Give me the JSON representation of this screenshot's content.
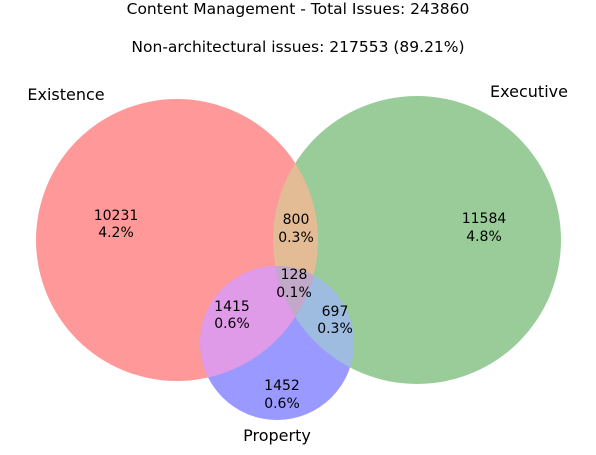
{
  "title": "Content Management - Total Issues: 243860",
  "subtitle": "Non-architectural issues: 217553 (89.21%)",
  "sets": {
    "existence": {
      "label": "Existence",
      "color": "#ff9999"
    },
    "executive": {
      "label": "Executive",
      "color": "#99cc99"
    },
    "property": {
      "label": "Property",
      "color": "#9999ff"
    }
  },
  "regions": {
    "existence_only": {
      "count": "10231",
      "percent": "4.2%",
      "color": "#ff9999"
    },
    "executive_only": {
      "count": "11584",
      "percent": "4.8%",
      "color": "#99cc99"
    },
    "property_only": {
      "count": "1452",
      "percent": "0.6%",
      "color": "#9999ff"
    },
    "existence_executive": {
      "count": "800",
      "percent": "0.3%",
      "color": "#e3bb94"
    },
    "existence_property": {
      "count": "1415",
      "percent": "0.6%",
      "color": "#e09be8"
    },
    "executive_property": {
      "count": "697",
      "percent": "0.3%",
      "color": "#9ebcdf"
    },
    "all_three": {
      "count": "128",
      "percent": "0.1%",
      "color": "#c2a9c8"
    }
  }
}
